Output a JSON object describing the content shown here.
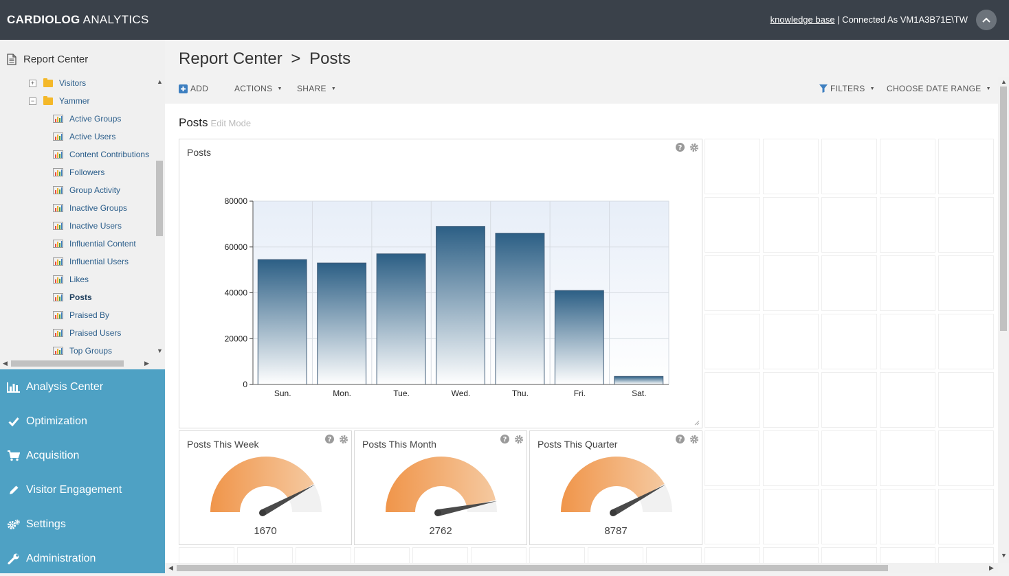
{
  "header": {
    "brand_bold": "CARDIOLOG",
    "brand_light": " ANALYTICS",
    "kb_link": "knowledge base",
    "connected": " | Connected As VM1A3B71E\\TW"
  },
  "sidebar": {
    "title": "Report Center",
    "folders": [
      {
        "label": "Visitors",
        "expander": "+"
      },
      {
        "label": "Yammer",
        "expander": "−"
      }
    ],
    "reports": [
      {
        "label": "Active Groups"
      },
      {
        "label": "Active Users"
      },
      {
        "label": "Content Contributions"
      },
      {
        "label": "Followers"
      },
      {
        "label": "Group Activity"
      },
      {
        "label": "Inactive Groups"
      },
      {
        "label": "Inactive Users"
      },
      {
        "label": "Influential Content"
      },
      {
        "label": "Influential Users"
      },
      {
        "label": "Likes"
      },
      {
        "label": "Posts"
      },
      {
        "label": "Praised By"
      },
      {
        "label": "Praised Users"
      },
      {
        "label": "Top Groups"
      }
    ],
    "active_report": "Posts",
    "nav": [
      {
        "label": "Analysis Center",
        "icon": "bar-chart-icon"
      },
      {
        "label": "Optimization",
        "icon": "check-icon"
      },
      {
        "label": "Acquisition",
        "icon": "cart-icon"
      },
      {
        "label": "Visitor Engagement",
        "icon": "pencil-icon"
      },
      {
        "label": "Settings",
        "icon": "gears-icon"
      },
      {
        "label": "Administration",
        "icon": "wrench-icon"
      }
    ]
  },
  "main": {
    "title_part1": "Report Center",
    "title_sep": ">",
    "title_part2": "Posts",
    "toolbar": {
      "add": "ADD",
      "actions": "ACTIONS",
      "share": "SHARE",
      "filters": "FILTERS",
      "date_range": "CHOOSE DATE RANGE"
    },
    "board_title": "Posts",
    "board_mode": "Edit Mode"
  },
  "widgets": {
    "chart_title": "Posts",
    "gauges": [
      {
        "title": "Posts This Week",
        "value": "1670",
        "fraction": 0.83
      },
      {
        "title": "Posts This Month",
        "value": "2762",
        "fraction": 0.93
      },
      {
        "title": "Posts This Quarter",
        "value": "8787",
        "fraction": 0.83
      }
    ]
  },
  "colors": {
    "topbar": "#3a414a",
    "nav": "#4ea1c4",
    "link": "#2a5d8a",
    "bar_top": "#2c5f85",
    "gauge": "#f0954a"
  },
  "chart_data": {
    "type": "bar",
    "title": "",
    "categories": [
      "Sun.",
      "Mon.",
      "Tue.",
      "Wed.",
      "Thu.",
      "Fri.",
      "Sat."
    ],
    "values": [
      54500,
      53000,
      57000,
      69000,
      66000,
      41000,
      3500
    ],
    "ylim": [
      0,
      80000
    ],
    "yticks": [
      0,
      20000,
      40000,
      60000,
      80000
    ],
    "grid": true,
    "xlabel": "",
    "ylabel": ""
  }
}
